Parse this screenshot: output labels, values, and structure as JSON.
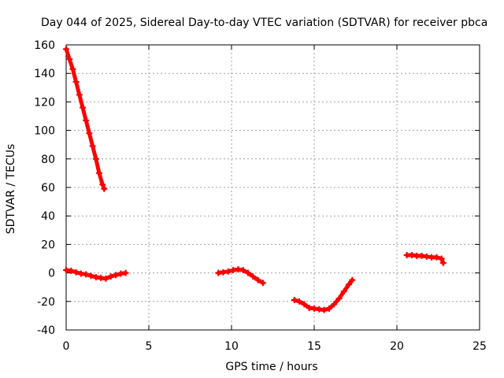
{
  "chart_data": {
    "type": "scatter",
    "title": "Day 044 of 2025, Sidereal Day-to-day VTEC variation (SDTVAR) for receiver pbca",
    "xlabel": "GPS time / hours",
    "ylabel": "SDTVAR / TECUs",
    "xlim": [
      0,
      25
    ],
    "ylim": [
      -40,
      160
    ],
    "xticks": [
      "0",
      "5",
      "10",
      "15",
      "20",
      "25"
    ],
    "yticks": [
      "-40",
      "-20",
      "0",
      "20",
      "40",
      "60",
      "80",
      "100",
      "120",
      "140",
      "160"
    ],
    "grid": true,
    "marker": "+",
    "series_color": "#ff0000",
    "segments": [
      [
        [
          0.0,
          157
        ],
        [
          0.2,
          150
        ],
        [
          0.4,
          143
        ],
        [
          0.6,
          134
        ],
        [
          0.8,
          125
        ],
        [
          1.0,
          116
        ],
        [
          1.2,
          107
        ],
        [
          1.4,
          98
        ],
        [
          1.6,
          89
        ],
        [
          1.8,
          80
        ],
        [
          2.0,
          70
        ],
        [
          2.2,
          62
        ],
        [
          2.3,
          59
        ]
      ],
      [
        [
          0.0,
          2
        ],
        [
          0.3,
          1.5
        ],
        [
          0.6,
          0.5
        ],
        [
          0.9,
          -0.5
        ],
        [
          1.2,
          -1
        ],
        [
          1.5,
          -2
        ],
        [
          1.8,
          -3
        ],
        [
          2.1,
          -3.5
        ],
        [
          2.4,
          -4
        ],
        [
          2.7,
          -2.5
        ],
        [
          3.0,
          -1.5
        ],
        [
          3.3,
          -0.5
        ],
        [
          3.6,
          0
        ]
      ],
      [
        [
          9.2,
          0
        ],
        [
          9.5,
          0.5
        ],
        [
          9.8,
          1
        ],
        [
          10.1,
          2
        ],
        [
          10.4,
          2.5
        ],
        [
          10.7,
          2
        ],
        [
          11.0,
          0
        ],
        [
          11.3,
          -2.5
        ],
        [
          11.6,
          -5
        ],
        [
          11.9,
          -7
        ]
      ],
      [
        [
          13.8,
          -19
        ],
        [
          14.1,
          -20
        ],
        [
          14.4,
          -22
        ],
        [
          14.7,
          -24.5
        ],
        [
          15.0,
          -25
        ],
        [
          15.3,
          -25.5
        ],
        [
          15.6,
          -26
        ],
        [
          15.9,
          -25
        ],
        [
          16.2,
          -22
        ],
        [
          16.5,
          -18
        ],
        [
          16.8,
          -13
        ],
        [
          17.1,
          -8
        ],
        [
          17.3,
          -5
        ]
      ],
      [
        [
          20.6,
          12.5
        ],
        [
          20.9,
          12.5
        ],
        [
          21.2,
          12
        ],
        [
          21.5,
          12
        ],
        [
          21.8,
          11.5
        ],
        [
          22.1,
          11
        ],
        [
          22.4,
          11
        ],
        [
          22.7,
          10
        ],
        [
          22.8,
          7
        ]
      ]
    ]
  }
}
